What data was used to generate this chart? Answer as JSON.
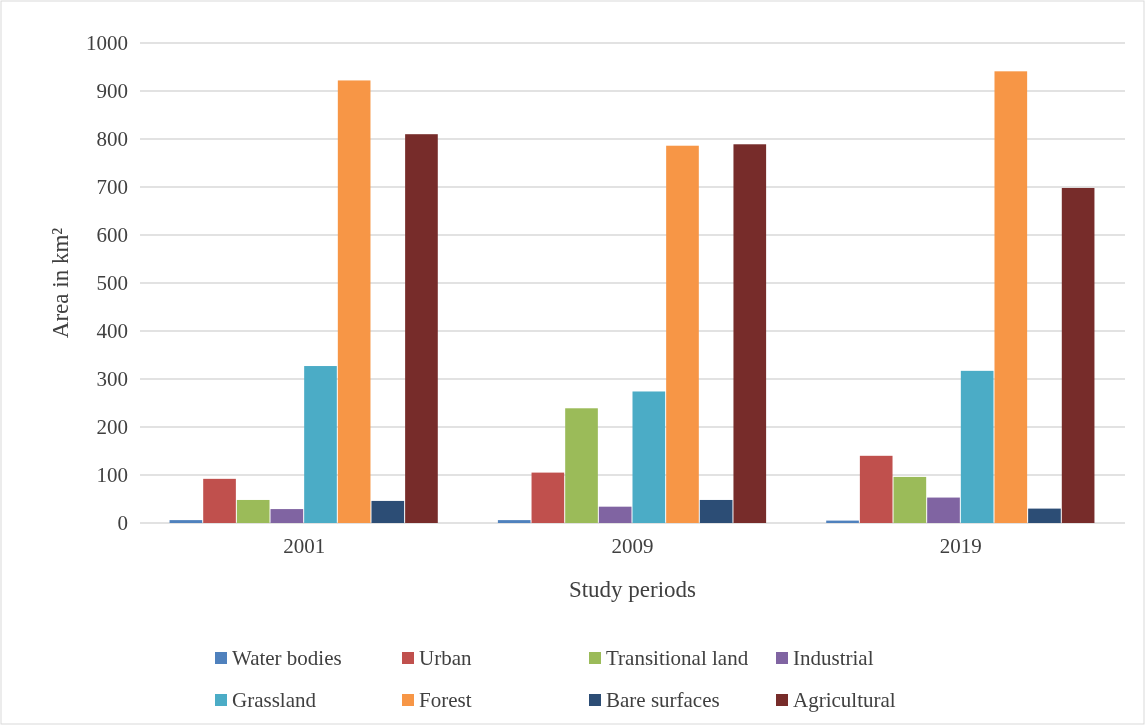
{
  "chart_data": {
    "type": "bar",
    "xlabel": "Study periods",
    "ylabel": "Area in km²",
    "categories": [
      "2001",
      "2009",
      "2019"
    ],
    "ylim": [
      0,
      1000
    ],
    "yticks": [
      0,
      100,
      200,
      300,
      400,
      500,
      600,
      700,
      800,
      900,
      1000
    ],
    "grid": "y",
    "legend": "bottom",
    "series": [
      {
        "name": "Water bodies",
        "color": "#4f81bd",
        "values": [
          6,
          6,
          5
        ]
      },
      {
        "name": "Urban",
        "color": "#c0504d",
        "values": [
          92,
          105,
          140
        ]
      },
      {
        "name": "Transitional land",
        "color": "#9bbb59",
        "values": [
          48,
          239,
          96
        ]
      },
      {
        "name": "Industrial",
        "color": "#8064a2",
        "values": [
          29,
          34,
          53
        ]
      },
      {
        "name": "Grassland",
        "color": "#4bacc6",
        "values": [
          327,
          274,
          317
        ]
      },
      {
        "name": "Forest",
        "color": "#f79646",
        "values": [
          922,
          786,
          941
        ]
      },
      {
        "name": "Bare surfaces",
        "color": "#2c4d75",
        "values": [
          46,
          48,
          30
        ]
      },
      {
        "name": "Agricultural",
        "color": "#772c2a",
        "values": [
          810,
          789,
          698
        ]
      }
    ]
  }
}
